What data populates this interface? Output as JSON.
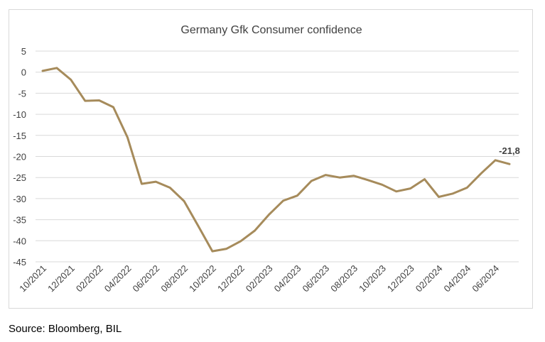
{
  "source": "Source: Bloomberg, BIL",
  "chart_data": {
    "type": "line",
    "title": "Germany Gfk Consumer confidence",
    "xlabel": "",
    "ylabel": "",
    "ylim": [
      -45,
      5
    ],
    "yticks": [
      5,
      0,
      -5,
      -10,
      -15,
      -20,
      -25,
      -30,
      -35,
      -40,
      -45
    ],
    "grid": true,
    "legend": "none",
    "color": "#a68b5b",
    "x": [
      "10/2021",
      "11/2021",
      "12/2021",
      "01/2022",
      "02/2022",
      "03/2022",
      "04/2022",
      "05/2022",
      "06/2022",
      "07/2022",
      "08/2022",
      "09/2022",
      "10/2022",
      "11/2022",
      "12/2022",
      "01/2023",
      "02/2023",
      "03/2023",
      "04/2023",
      "05/2023",
      "06/2023",
      "07/2023",
      "08/2023",
      "09/2023",
      "10/2023",
      "11/2023",
      "12/2023",
      "01/2024",
      "02/2024",
      "03/2024",
      "04/2024",
      "05/2024",
      "06/2024",
      "07/2024"
    ],
    "xtick_labels": [
      "10/2021",
      "12/2021",
      "02/2022",
      "04/2022",
      "06/2022",
      "08/2022",
      "10/2022",
      "12/2022",
      "02/2023",
      "04/2023",
      "06/2023",
      "08/2023",
      "10/2023",
      "12/2023",
      "02/2024",
      "04/2024",
      "06/2024"
    ],
    "values": [
      0.3,
      1.0,
      -1.8,
      -6.8,
      -6.7,
      -8.3,
      -15.5,
      -26.5,
      -26.0,
      -27.4,
      -30.6,
      -36.5,
      -42.5,
      -41.9,
      -40.1,
      -37.6,
      -33.8,
      -30.5,
      -29.3,
      -25.8,
      -24.4,
      -25.0,
      -24.6,
      -25.6,
      -26.7,
      -28.3,
      -27.6,
      -25.4,
      -29.6,
      -28.8,
      -27.4,
      -24.0,
      -20.9,
      -21.8
    ],
    "annotation": {
      "index": 33,
      "text": "-21,8"
    }
  }
}
